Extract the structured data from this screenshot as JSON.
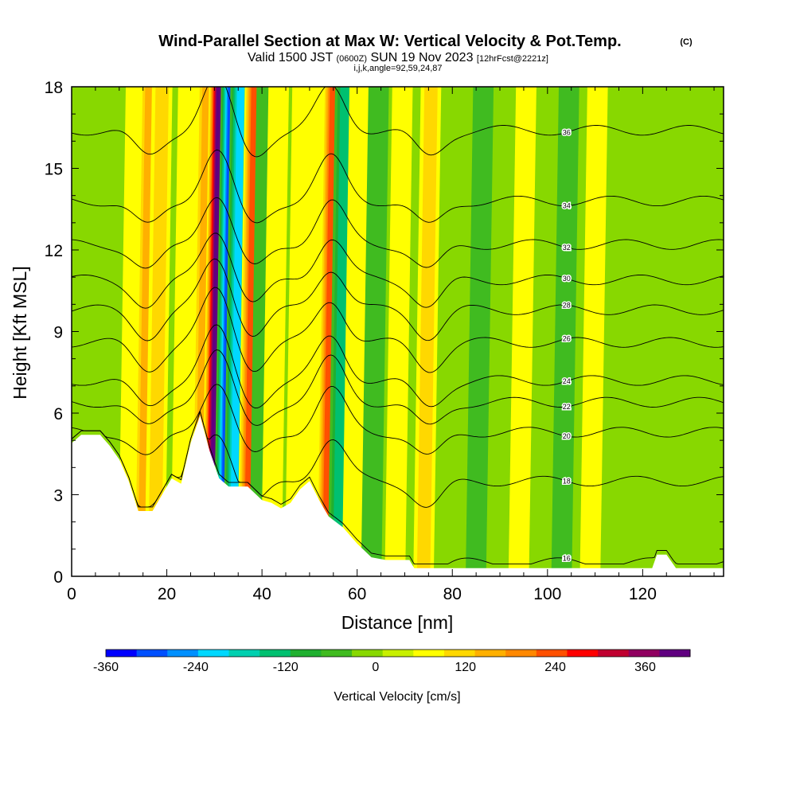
{
  "chart_data": {
    "type": "heatmap",
    "title": "Wind-Parallel Section at Max W: Vertical Velocity & Pot.Temp.",
    "title_mark": "(C)",
    "subtitle_prefix": "Valid 1500 JST",
    "subtitle_utc": "(0600Z)",
    "subtitle_date": "SUN 19 Nov 2023",
    "subtitle_fcst": "[12hrFcst@2221z]",
    "subtitle2": "i,j,k,angle=92,59,24,87",
    "xlabel": "Distance [nm]",
    "ylabel": "Height [Kft MSL]",
    "xlim": [
      0,
      137
    ],
    "ylim": [
      0,
      18
    ],
    "x_ticks": [
      "0",
      "20",
      "40",
      "60",
      "80",
      "100",
      "120"
    ],
    "y_ticks": [
      "0",
      "3",
      "6",
      "9",
      "12",
      "15",
      "18"
    ],
    "colorbar": {
      "label": "Vertical Velocity [cm/s]",
      "min": -360,
      "max": 420,
      "step": 40,
      "tick_labels": [
        "-360",
        "-240",
        "-120",
        "0",
        "120",
        "240",
        "360"
      ],
      "colors": [
        "#0000ff",
        "#0050ff",
        "#0090ff",
        "#00d8ff",
        "#00d0b0",
        "#00c070",
        "#20b030",
        "#40bb20",
        "#88d800",
        "#c8f000",
        "#ffff00",
        "#ffd800",
        "#ffb000",
        "#ff8800",
        "#ff5000",
        "#ff0000",
        "#c00030",
        "#900060",
        "#600080"
      ]
    },
    "terrain_kft": [
      [
        0,
        4.9
      ],
      [
        2,
        5.2
      ],
      [
        6,
        5.2
      ],
      [
        8,
        4.8
      ],
      [
        10,
        4.3
      ],
      [
        12,
        3.5
      ],
      [
        14,
        2.4
      ],
      [
        17,
        2.4
      ],
      [
        19,
        3.0
      ],
      [
        21,
        3.6
      ],
      [
        23,
        3.4
      ],
      [
        25,
        4.9
      ],
      [
        27,
        5.9
      ],
      [
        29,
        4.6
      ],
      [
        31,
        3.6
      ],
      [
        33,
        3.3
      ],
      [
        37,
        3.3
      ],
      [
        40,
        2.8
      ],
      [
        42,
        2.7
      ],
      [
        44,
        2.5
      ],
      [
        46,
        2.7
      ],
      [
        48,
        3.2
      ],
      [
        50,
        3.5
      ],
      [
        52,
        2.8
      ],
      [
        54,
        2.2
      ],
      [
        57,
        1.8
      ],
      [
        60,
        1.2
      ],
      [
        63,
        0.7
      ],
      [
        66,
        0.6
      ],
      [
        71,
        0.6
      ],
      [
        72,
        0.3
      ],
      [
        122,
        0.3
      ],
      [
        123,
        0.8
      ],
      [
        125,
        0.8
      ],
      [
        127,
        0.3
      ],
      [
        137,
        0.3
      ]
    ],
    "w_anomalies": [
      {
        "x": 13,
        "w": 60
      },
      {
        "x": 16,
        "w": 150
      },
      {
        "x": 18.5,
        "w": 110
      },
      {
        "x": 24,
        "w": 40
      },
      {
        "x": 28,
        "w": 120
      },
      {
        "x": 30.5,
        "w": 380
      },
      {
        "x": 33,
        "w": -300
      },
      {
        "x": 35,
        "w": -200
      },
      {
        "x": 38,
        "w": 200
      },
      {
        "x": 40.5,
        "w": -60
      },
      {
        "x": 43,
        "w": 40
      },
      {
        "x": 48,
        "w": 60
      },
      {
        "x": 52,
        "w": 40
      },
      {
        "x": 54.5,
        "w": 200
      },
      {
        "x": 57,
        "w": -150
      },
      {
        "x": 60,
        "w": 60
      },
      {
        "x": 64,
        "w": -40
      },
      {
        "x": 69,
        "w": 40
      },
      {
        "x": 75,
        "w": 80
      },
      {
        "x": 86,
        "w": -40
      },
      {
        "x": 95,
        "w": 50
      },
      {
        "x": 104,
        "w": -40
      },
      {
        "x": 110,
        "w": 40
      },
      {
        "x": 118,
        "w": -30
      },
      {
        "x": 131,
        "w": 30
      }
    ],
    "theta_contours": [
      {
        "label": "16",
        "h": 0.5
      },
      {
        "label": "18",
        "h": 3.5
      },
      {
        "label": "20",
        "h": 5.3
      },
      {
        "label": "22",
        "h": 6.4
      },
      {
        "label": "24",
        "h": 7.2
      },
      {
        "label": "26",
        "h": 8.6
      },
      {
        "label": "28",
        "h": 9.8
      },
      {
        "label": "30",
        "h": 10.9
      },
      {
        "label": "32",
        "h": 12.2
      },
      {
        "label": "34",
        "h": 13.8
      },
      {
        "label": "36",
        "h": 16.4
      }
    ]
  }
}
